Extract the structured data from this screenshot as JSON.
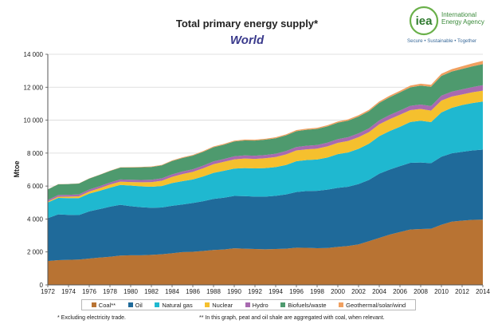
{
  "logo": {
    "mark": "iea",
    "name_line1": "International",
    "name_line2": "Energy Agency",
    "tagline": "Secure • Sustainable • Together"
  },
  "colors": {
    "coal": "#b87333",
    "oil": "#1f6a9a",
    "gas": "#1fb8d0",
    "nuclear": "#f5c02e",
    "hydro": "#a86ab0",
    "biofuels": "#4e9a6e",
    "other": "#f0a060"
  },
  "footnotes": {
    "left": "* Excluding electricity trade.",
    "right": "** In this graph, peat and oil shale are aggregated with coal, when relevant."
  },
  "chart_data": {
    "type": "area",
    "stacked": true,
    "title": "Total primary energy supply*",
    "subtitle": "World",
    "ylabel": "Mtoe",
    "ylim": [
      0,
      14000
    ],
    "yticks": [
      0,
      2000,
      4000,
      6000,
      8000,
      10000,
      12000,
      14000
    ],
    "ytick_labels": [
      "0",
      "2 000",
      "4 000",
      "6 000",
      "8 000",
      "10 000",
      "12 000",
      "14 000"
    ],
    "xlim": [
      1972,
      2014
    ],
    "xticks": [
      1972,
      1974,
      1976,
      1978,
      1980,
      1982,
      1984,
      1986,
      1988,
      1990,
      1992,
      1994,
      1996,
      1998,
      2000,
      2002,
      2004,
      2006,
      2008,
      2010,
      2012,
      2014
    ],
    "x": [
      1972,
      1973,
      1974,
      1975,
      1976,
      1977,
      1978,
      1979,
      1980,
      1981,
      1982,
      1983,
      1984,
      1985,
      1986,
      1987,
      1988,
      1989,
      1990,
      1991,
      1992,
      1993,
      1994,
      1995,
      1996,
      1997,
      1998,
      1999,
      2000,
      2001,
      2002,
      2003,
      2004,
      2005,
      2006,
      2007,
      2008,
      2009,
      2010,
      2011,
      2012,
      2013,
      2014
    ],
    "legend_position": "bottom",
    "series": [
      {
        "name": "Coal**",
        "key": "coal",
        "values": [
          1450,
          1500,
          1520,
          1540,
          1600,
          1660,
          1710,
          1780,
          1800,
          1800,
          1820,
          1860,
          1920,
          1990,
          2010,
          2060,
          2120,
          2150,
          2220,
          2200,
          2180,
          2160,
          2180,
          2200,
          2260,
          2250,
          2230,
          2240,
          2310,
          2360,
          2460,
          2650,
          2850,
          3050,
          3210,
          3360,
          3390,
          3410,
          3650,
          3840,
          3900,
          3950,
          3960
        ]
      },
      {
        "name": "Oil",
        "key": "oil",
        "values": [
          2600,
          2780,
          2730,
          2700,
          2860,
          2940,
          3040,
          3080,
          2980,
          2920,
          2860,
          2840,
          2880,
          2890,
          2960,
          3020,
          3100,
          3140,
          3180,
          3190,
          3180,
          3200,
          3230,
          3290,
          3380,
          3450,
          3480,
          3540,
          3580,
          3600,
          3660,
          3720,
          3900,
          3950,
          4000,
          4050,
          4040,
          3980,
          4130,
          4150,
          4180,
          4210,
          4250
        ]
      },
      {
        "name": "Natural gas",
        "key": "gas",
        "values": [
          950,
          1000,
          1020,
          1030,
          1080,
          1110,
          1150,
          1210,
          1250,
          1260,
          1280,
          1300,
          1380,
          1420,
          1430,
          1500,
          1580,
          1640,
          1660,
          1700,
          1710,
          1730,
          1740,
          1790,
          1870,
          1880,
          1900,
          1950,
          2050,
          2080,
          2140,
          2200,
          2280,
          2340,
          2390,
          2480,
          2540,
          2490,
          2690,
          2760,
          2840,
          2880,
          2920
        ]
      },
      {
        "name": "Nuclear",
        "key": "nuclear",
        "values": [
          55,
          70,
          90,
          110,
          130,
          160,
          190,
          200,
          215,
          250,
          280,
          320,
          380,
          430,
          460,
          500,
          530,
          540,
          560,
          580,
          580,
          600,
          610,
          640,
          650,
          650,
          660,
          680,
          680,
          700,
          710,
          700,
          720,
          720,
          730,
          720,
          710,
          700,
          720,
          680,
          640,
          650,
          660
        ]
      },
      {
        "name": "Hydro",
        "key": "hydro",
        "values": [
          100,
          105,
          110,
          115,
          117,
          120,
          125,
          130,
          135,
          138,
          140,
          145,
          150,
          155,
          157,
          160,
          165,
          170,
          185,
          190,
          192,
          195,
          200,
          205,
          210,
          215,
          220,
          225,
          225,
          225,
          228,
          230,
          238,
          250,
          255,
          260,
          270,
          275,
          295,
          300,
          310,
          320,
          330
        ]
      },
      {
        "name": "Biofuels/waste",
        "key": "biofuels",
        "values": [
          640,
          650,
          650,
          660,
          670,
          690,
          700,
          720,
          750,
          770,
          780,
          790,
          810,
          820,
          830,
          840,
          860,
          870,
          900,
          910,
          920,
          930,
          940,
          950,
          960,
          970,
          980,
          990,
          1000,
          1010,
          1020,
          1040,
          1060,
          1080,
          1100,
          1120,
          1150,
          1170,
          1200,
          1220,
          1240,
          1260,
          1280
        ]
      },
      {
        "name": "Geothermal/solar/wind",
        "key": "other",
        "values": [
          8,
          9,
          10,
          11,
          12,
          14,
          16,
          18,
          20,
          24,
          28,
          32,
          36,
          40,
          42,
          45,
          48,
          50,
          52,
          54,
          56,
          58,
          60,
          62,
          65,
          68,
          70,
          72,
          75,
          78,
          80,
          85,
          90,
          95,
          100,
          108,
          115,
          122,
          135,
          150,
          165,
          180,
          200
        ]
      }
    ]
  }
}
